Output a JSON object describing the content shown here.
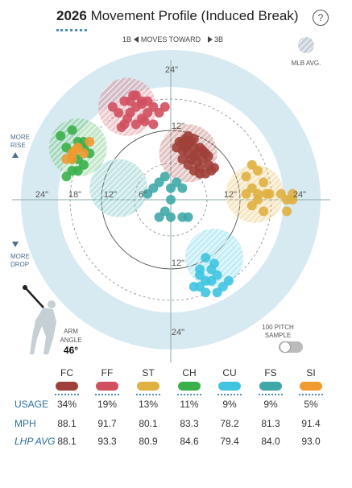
{
  "header": {
    "year": "2026",
    "title": "Movement Profile (Induced Break)",
    "help": "?"
  },
  "plot": {
    "direction_left": "1B",
    "direction_mid": "MOVES TOWARD",
    "direction_right": "3B",
    "legend_mlb": "MLB AVG.",
    "more_rise_1": "MORE",
    "more_rise_2": "RISE",
    "more_drop_1": "MORE",
    "more_drop_2": "DROP",
    "arm_angle_label_1": "ARM",
    "arm_angle_label_2": "ANGLE",
    "arm_angle_value": "46°",
    "sample_label_1": "100 PITCH",
    "sample_label_2": "SAMPLE",
    "tick_24_top": "24\"",
    "tick_12_top": "12\"",
    "tick_12_bottom": "12\"",
    "tick_24_bottom": "24\"",
    "tick_24_left": "24\"",
    "tick_18_left": "18\"",
    "tick_12_left": "12\"",
    "tick_6_left": "6\"",
    "tick_12_right": "12\"",
    "tick_24_right": "24\""
  },
  "chart_data": {
    "type": "scatter",
    "xlabel": "",
    "ylabel": "",
    "xlim": [
      -24,
      24
    ],
    "ylim": [
      -24,
      24
    ],
    "series": [
      {
        "name": "FC",
        "color": "#a0403a",
        "mlb_avg": [
          3,
          8
        ],
        "points": [
          [
            1.5,
            10
          ],
          [
            2.5,
            10.5
          ],
          [
            3,
            9.5
          ],
          [
            4,
            9
          ],
          [
            3.5,
            10
          ],
          [
            2,
            8.5
          ],
          [
            4.5,
            8
          ],
          [
            5,
            9
          ],
          [
            3,
            8
          ],
          [
            2.5,
            9
          ],
          [
            4,
            7.5
          ],
          [
            5.5,
            7
          ],
          [
            6,
            8
          ],
          [
            3.5,
            7
          ],
          [
            4.5,
            6.5
          ],
          [
            5,
            5.5
          ],
          [
            6.5,
            6
          ],
          [
            7,
            5
          ],
          [
            5,
            4.5
          ],
          [
            6,
            4.5
          ],
          [
            7.5,
            5.5
          ],
          [
            3,
            6
          ],
          [
            4,
            5
          ],
          [
            2,
            7
          ],
          [
            5.5,
            8.5
          ],
          [
            1,
            9
          ],
          [
            3,
            11
          ],
          [
            6.5,
            7.5
          ],
          [
            4,
            10.5
          ],
          [
            2,
            10
          ]
        ]
      },
      {
        "name": "FF",
        "color": "#d05060",
        "mlb_avg": [
          -7.5,
          16
        ],
        "points": [
          [
            -6,
            16
          ],
          [
            -7,
            15
          ],
          [
            -5,
            17
          ],
          [
            -8,
            17
          ],
          [
            -4,
            15
          ],
          [
            -6,
            18
          ],
          [
            -3,
            16
          ],
          [
            -9,
            15
          ],
          [
            -5,
            14
          ],
          [
            -7,
            17
          ],
          [
            -4,
            17
          ],
          [
            -2,
            15
          ],
          [
            -8,
            13
          ],
          [
            -6,
            13
          ],
          [
            -3,
            13
          ],
          [
            -10,
            16
          ],
          [
            -5,
            16.5
          ],
          [
            -7.5,
            14
          ],
          [
            -4.5,
            13.5
          ],
          [
            -1,
            16
          ],
          [
            -6.5,
            18
          ],
          [
            -8.5,
            12.5
          ]
        ]
      },
      {
        "name": "ST",
        "color": "#e0b040",
        "mlb_avg": [
          14.5,
          1
        ],
        "points": [
          [
            14,
            6
          ],
          [
            15,
            5
          ],
          [
            13,
            4
          ],
          [
            16,
            3
          ],
          [
            14,
            2
          ],
          [
            15,
            1
          ],
          [
            13,
            1
          ],
          [
            16.5,
            1
          ],
          [
            15,
            0
          ],
          [
            14,
            -1
          ],
          [
            16,
            -2
          ],
          [
            17,
            1
          ],
          [
            20,
            0
          ],
          [
            21,
            1
          ],
          [
            21,
            0
          ],
          [
            19,
            1
          ],
          [
            20,
            -2
          ]
        ]
      },
      {
        "name": "CH",
        "color": "#3ab04a",
        "mlb_avg": [
          -16,
          9
        ],
        "points": [
          [
            -17,
            12
          ],
          [
            -16,
            10
          ],
          [
            -15,
            9
          ],
          [
            -18,
            9
          ],
          [
            -17,
            8
          ],
          [
            -16,
            7
          ],
          [
            -15,
            6
          ],
          [
            -17,
            5
          ],
          [
            -18,
            4
          ],
          [
            -15,
            10
          ],
          [
            -14,
            8
          ],
          [
            -17,
            7
          ],
          [
            -19,
            11
          ],
          [
            -16,
            5
          ]
        ]
      },
      {
        "name": "CU",
        "color": "#40c4e0",
        "mlb_avg": [
          7.5,
          -10
        ],
        "points": [
          [
            6,
            -10
          ],
          [
            7,
            -12
          ],
          [
            5,
            -13
          ],
          [
            8,
            -13
          ],
          [
            6,
            -14
          ],
          [
            5,
            -15
          ],
          [
            4,
            -15
          ],
          [
            7,
            -14
          ],
          [
            9,
            -15
          ],
          [
            10,
            -14
          ],
          [
            6,
            -16
          ],
          [
            8,
            -16
          ],
          [
            5,
            -12
          ],
          [
            7.5,
            -11
          ]
        ]
      },
      {
        "name": "FS",
        "color": "#40a8a8",
        "mlb_avg": [
          -9,
          2
        ],
        "points": [
          [
            -2,
            3
          ],
          [
            -1,
            4
          ],
          [
            -3,
            2
          ],
          [
            0,
            2
          ],
          [
            -4,
            1
          ],
          [
            1,
            3
          ],
          [
            2,
            2
          ],
          [
            0,
            0
          ],
          [
            -1,
            -2
          ],
          [
            -2,
            -3
          ],
          [
            0,
            -3
          ],
          [
            2,
            -3
          ],
          [
            3,
            -3
          ]
        ]
      },
      {
        "name": "SI",
        "color": "#f09a30",
        "mlb_avg": [
          -16,
          9
        ],
        "points": [
          [
            -17,
            8
          ],
          [
            -16,
            9
          ],
          [
            -15,
            8
          ],
          [
            -14,
            10
          ],
          [
            -18,
            7
          ],
          [
            -16.5,
            8.5
          ],
          [
            -17,
            7
          ]
        ]
      }
    ]
  },
  "stats": {
    "pitches": [
      {
        "code": "FC",
        "color": "#a0403a"
      },
      {
        "code": "FF",
        "color": "#d05060"
      },
      {
        "code": "ST",
        "color": "#e0b040"
      },
      {
        "code": "CH",
        "color": "#3ab04a"
      },
      {
        "code": "CU",
        "color": "#40c4e0"
      },
      {
        "code": "FS",
        "color": "#40a8a8"
      },
      {
        "code": "SI",
        "color": "#f09a30"
      }
    ],
    "row_labels": {
      "usage": "USAGE",
      "mph": "MPH",
      "lhp": "LHP AVG"
    },
    "usage": [
      "34%",
      "19%",
      "13%",
      "11%",
      "9%",
      "9%",
      "5%"
    ],
    "mph": [
      "88.1",
      "91.7",
      "80.1",
      "83.3",
      "78.2",
      "81.3",
      "91.4"
    ],
    "lhp_avg": [
      "88.1",
      "93.3",
      "80.9",
      "84.6",
      "79.4",
      "84.0",
      "93.0"
    ]
  }
}
